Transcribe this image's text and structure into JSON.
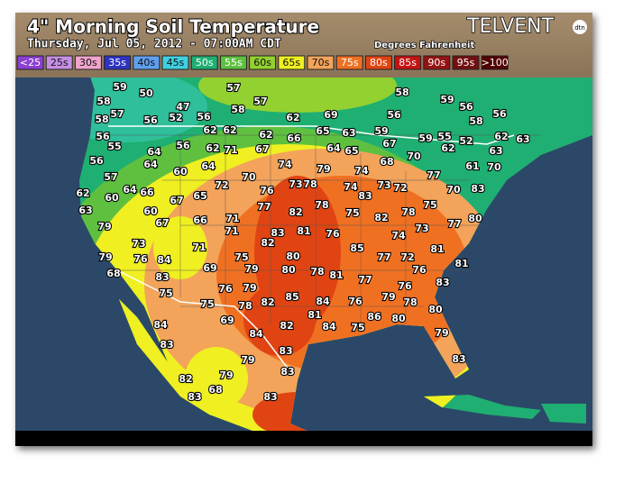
{
  "header": {
    "title": "4\" Morning Soil Temperature",
    "subtitle": "Thursday, Jul 05, 2012 - 07:00AM CDT",
    "units": "Degrees Fahrenheit",
    "brand": "TELVENT",
    "brand_sub": "dtn"
  },
  "legend": [
    {
      "label": "<25",
      "color": "#8b3fd3"
    },
    {
      "label": "25s",
      "color": "#c58ee3"
    },
    {
      "label": "30s",
      "color": "#f0a3cb"
    },
    {
      "label": "35s",
      "color": "#2f33c2"
    },
    {
      "label": "40s",
      "color": "#5f9ff0"
    },
    {
      "label": "45s",
      "color": "#3fd0e2"
    },
    {
      "label": "50s",
      "color": "#1faf72"
    },
    {
      "label": "55s",
      "color": "#5fc040"
    },
    {
      "label": "60s",
      "color": "#92d12f"
    },
    {
      "label": "65s",
      "color": "#efef21"
    },
    {
      "label": "70s",
      "color": "#f3a35a"
    },
    {
      "label": "75s",
      "color": "#f07022"
    },
    {
      "label": "80s",
      "color": "#e04412"
    },
    {
      "label": "85s",
      "color": "#c41212"
    },
    {
      "label": "90s",
      "color": "#941212"
    },
    {
      "label": "95s",
      "color": "#731010"
    },
    {
      "label": ">100",
      "color": "#520000"
    }
  ],
  "stations": [
    59,
    50,
    57,
    58,
    59,
    56,
    58,
    47,
    58,
    57,
    56,
    58,
    56,
    58,
    57,
    56,
    52,
    56,
    62,
    69,
    56,
    55,
    62,
    62,
    62,
    66,
    65,
    63,
    59,
    55,
    52,
    62,
    63,
    64,
    56,
    62,
    71,
    67,
    64,
    65,
    67,
    59,
    62,
    63,
    56,
    64,
    64,
    74,
    79,
    74,
    68,
    70,
    61,
    70,
    57,
    60,
    70,
    78,
    74,
    83,
    73,
    72,
    77,
    70,
    83,
    62,
    60,
    64,
    66,
    67,
    65,
    72,
    76,
    73,
    78,
    75,
    82,
    78,
    75,
    77,
    80,
    63,
    60,
    67,
    66,
    71,
    77,
    82,
    81,
    83,
    76,
    74,
    73,
    79,
    71,
    82,
    81,
    73,
    71,
    75,
    80,
    85,
    77,
    72,
    81,
    79,
    76,
    84,
    69,
    79,
    80,
    78,
    81,
    77,
    76,
    68,
    83,
    76,
    79,
    82,
    85,
    84,
    76,
    79,
    76,
    83,
    75,
    75,
    78,
    78,
    80,
    69,
    82,
    81,
    84,
    75,
    86,
    80,
    84,
    84,
    79,
    83,
    83,
    83,
    79,
    83,
    79,
    82,
    68,
    83,
    83
  ]
}
